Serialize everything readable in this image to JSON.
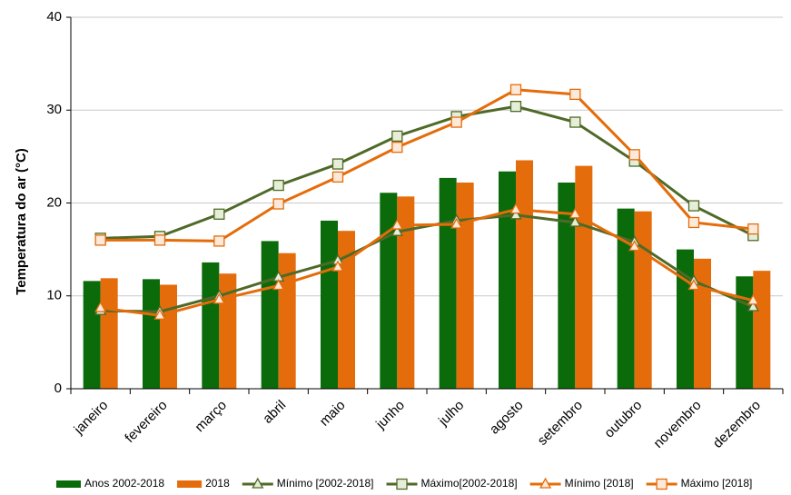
{
  "chart_data": {
    "type": "bar",
    "y_label": "Temperatura do ar (°C)",
    "categories": [
      "janeiro",
      "fevereiro",
      "março",
      "abril",
      "maio",
      "junho",
      "julho",
      "agosto",
      "setembro",
      "outubro",
      "novembro",
      "dezembro"
    ],
    "series": [
      {
        "name": "Anos 2002-2018",
        "type": "bar",
        "color": "#0b6b0b",
        "values": [
          11.6,
          11.8,
          13.6,
          15.9,
          18.1,
          21.1,
          22.7,
          23.4,
          22.2,
          19.4,
          15.0,
          12.1
        ]
      },
      {
        "name": "2018",
        "type": "bar",
        "color": "#e46c0a",
        "values": [
          11.9,
          11.2,
          12.4,
          14.6,
          17.0,
          20.7,
          22.2,
          24.6,
          24.0,
          19.1,
          14.0,
          12.7
        ]
      },
      {
        "name": "Mínimo [2002-2018]",
        "type": "line",
        "marker": "triangle",
        "color": "#4f6a28",
        "marker_fill": "#e6eed8",
        "values": [
          8.4,
          8.3,
          10.0,
          12.0,
          13.8,
          16.9,
          18.1,
          18.7,
          17.9,
          15.8,
          11.6,
          8.8
        ]
      },
      {
        "name": "Máximo[2002-2018]",
        "type": "line",
        "marker": "square",
        "color": "#4f6a28",
        "marker_fill": "#e6eed8",
        "values": [
          16.2,
          16.4,
          18.8,
          21.9,
          24.2,
          27.2,
          29.3,
          30.4,
          28.7,
          24.5,
          19.7,
          16.5
        ]
      },
      {
        "name": "Mínimo [2018]",
        "type": "line",
        "marker": "triangle",
        "color": "#e46c0a",
        "marker_fill": "#fde9d9",
        "values": [
          8.7,
          7.9,
          9.6,
          11.1,
          13.1,
          17.6,
          17.7,
          19.3,
          18.8,
          15.3,
          11.1,
          9.5
        ]
      },
      {
        "name": "Máximo [2018]",
        "type": "line",
        "marker": "square",
        "color": "#e46c0a",
        "marker_fill": "#fde9d9",
        "values": [
          16.0,
          16.0,
          15.9,
          19.9,
          22.8,
          26.0,
          28.7,
          32.2,
          31.7,
          25.2,
          17.9,
          17.2
        ]
      }
    ],
    "ylim": [
      0,
      40
    ],
    "yticks": [
      0,
      10,
      20,
      30,
      40
    ],
    "grid": true,
    "legend": "bottom"
  }
}
